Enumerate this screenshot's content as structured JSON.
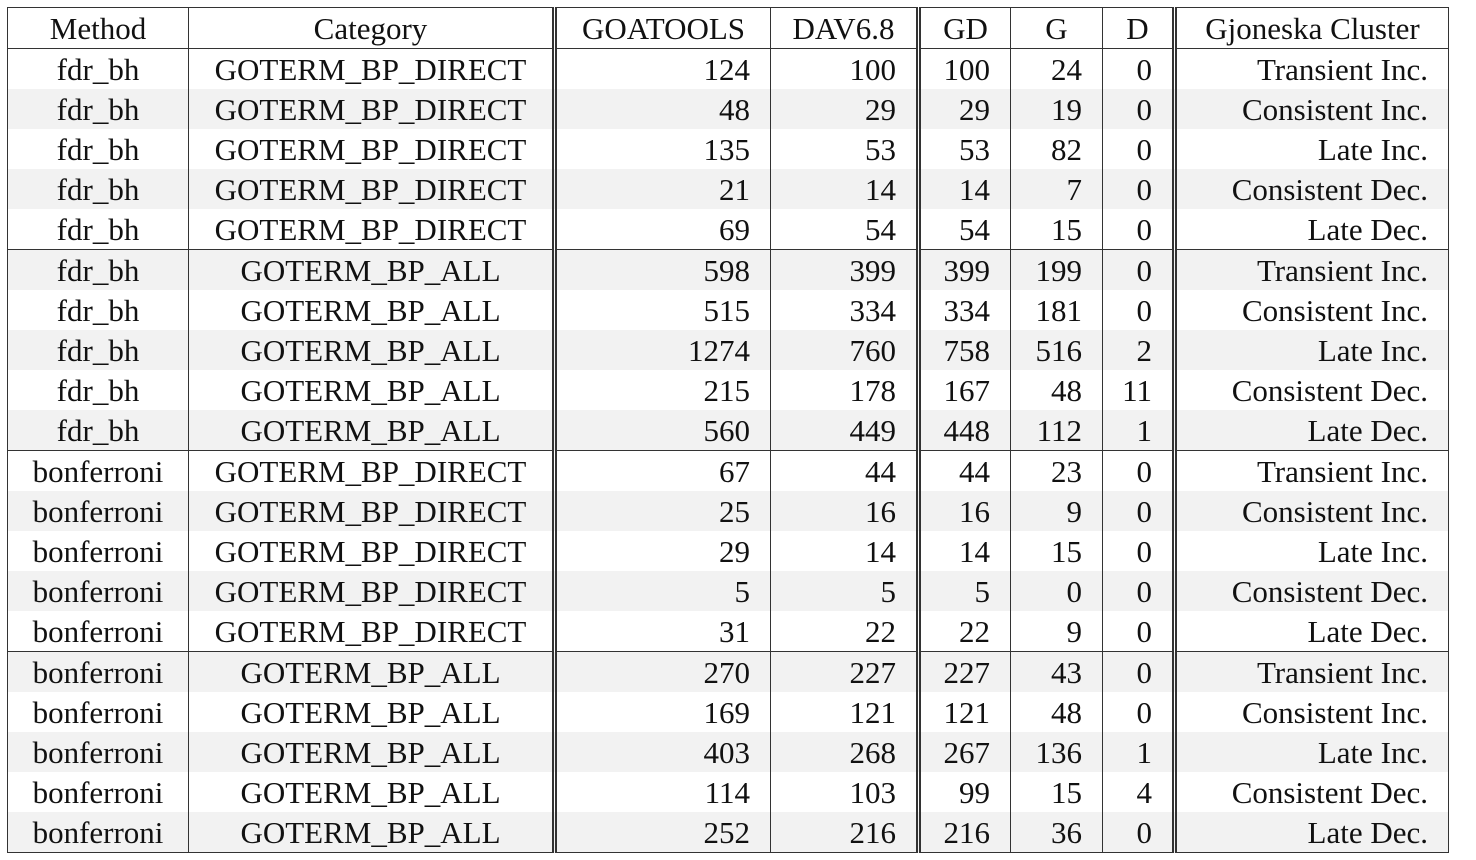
{
  "table": {
    "headers": {
      "method": "Method",
      "category": "Category",
      "goatools": "GOATOOLS",
      "dav": "DAV6.8",
      "gd": "GD",
      "g": "G",
      "d": "D",
      "cluster": "Gjoneska Cluster"
    },
    "rows": [
      {
        "method": "fdr_bh",
        "category": "GOTERM_BP_DIRECT",
        "goatools": "124",
        "dav": "100",
        "gd": "100",
        "g": "24",
        "d": "0",
        "cluster": "Transient Inc."
      },
      {
        "method": "fdr_bh",
        "category": "GOTERM_BP_DIRECT",
        "goatools": "48",
        "dav": "29",
        "gd": "29",
        "g": "19",
        "d": "0",
        "cluster": "Consistent Inc."
      },
      {
        "method": "fdr_bh",
        "category": "GOTERM_BP_DIRECT",
        "goatools": "135",
        "dav": "53",
        "gd": "53",
        "g": "82",
        "d": "0",
        "cluster": "Late Inc."
      },
      {
        "method": "fdr_bh",
        "category": "GOTERM_BP_DIRECT",
        "goatools": "21",
        "dav": "14",
        "gd": "14",
        "g": "7",
        "d": "0",
        "cluster": "Consistent Dec."
      },
      {
        "method": "fdr_bh",
        "category": "GOTERM_BP_DIRECT",
        "goatools": "69",
        "dav": "54",
        "gd": "54",
        "g": "15",
        "d": "0",
        "cluster": "Late Dec."
      },
      {
        "method": "fdr_bh",
        "category": "GOTERM_BP_ALL",
        "goatools": "598",
        "dav": "399",
        "gd": "399",
        "g": "199",
        "d": "0",
        "cluster": "Transient Inc."
      },
      {
        "method": "fdr_bh",
        "category": "GOTERM_BP_ALL",
        "goatools": "515",
        "dav": "334",
        "gd": "334",
        "g": "181",
        "d": "0",
        "cluster": "Consistent Inc."
      },
      {
        "method": "fdr_bh",
        "category": "GOTERM_BP_ALL",
        "goatools": "1274",
        "dav": "760",
        "gd": "758",
        "g": "516",
        "d": "2",
        "cluster": "Late Inc."
      },
      {
        "method": "fdr_bh",
        "category": "GOTERM_BP_ALL",
        "goatools": "215",
        "dav": "178",
        "gd": "167",
        "g": "48",
        "d": "11",
        "cluster": "Consistent Dec."
      },
      {
        "method": "fdr_bh",
        "category": "GOTERM_BP_ALL",
        "goatools": "560",
        "dav": "449",
        "gd": "448",
        "g": "112",
        "d": "1",
        "cluster": "Late Dec."
      },
      {
        "method": "bonferroni",
        "category": "GOTERM_BP_DIRECT",
        "goatools": "67",
        "dav": "44",
        "gd": "44",
        "g": "23",
        "d": "0",
        "cluster": "Transient Inc."
      },
      {
        "method": "bonferroni",
        "category": "GOTERM_BP_DIRECT",
        "goatools": "25",
        "dav": "16",
        "gd": "16",
        "g": "9",
        "d": "0",
        "cluster": "Consistent Inc."
      },
      {
        "method": "bonferroni",
        "category": "GOTERM_BP_DIRECT",
        "goatools": "29",
        "dav": "14",
        "gd": "14",
        "g": "15",
        "d": "0",
        "cluster": "Late Inc."
      },
      {
        "method": "bonferroni",
        "category": "GOTERM_BP_DIRECT",
        "goatools": "5",
        "dav": "5",
        "gd": "5",
        "g": "0",
        "d": "0",
        "cluster": "Consistent Dec."
      },
      {
        "method": "bonferroni",
        "category": "GOTERM_BP_DIRECT",
        "goatools": "31",
        "dav": "22",
        "gd": "22",
        "g": "9",
        "d": "0",
        "cluster": "Late Dec."
      },
      {
        "method": "bonferroni",
        "category": "GOTERM_BP_ALL",
        "goatools": "270",
        "dav": "227",
        "gd": "227",
        "g": "43",
        "d": "0",
        "cluster": "Transient Inc."
      },
      {
        "method": "bonferroni",
        "category": "GOTERM_BP_ALL",
        "goatools": "169",
        "dav": "121",
        "gd": "121",
        "g": "48",
        "d": "0",
        "cluster": "Consistent Inc."
      },
      {
        "method": "bonferroni",
        "category": "GOTERM_BP_ALL",
        "goatools": "403",
        "dav": "268",
        "gd": "267",
        "g": "136",
        "d": "1",
        "cluster": "Late Inc."
      },
      {
        "method": "bonferroni",
        "category": "GOTERM_BP_ALL",
        "goatools": "114",
        "dav": "103",
        "gd": "99",
        "g": "15",
        "d": "4",
        "cluster": "Consistent Dec."
      },
      {
        "method": "bonferroni",
        "category": "GOTERM_BP_ALL",
        "goatools": "252",
        "dav": "216",
        "gd": "216",
        "g": "36",
        "d": "0",
        "cluster": "Late Dec."
      }
    ]
  }
}
